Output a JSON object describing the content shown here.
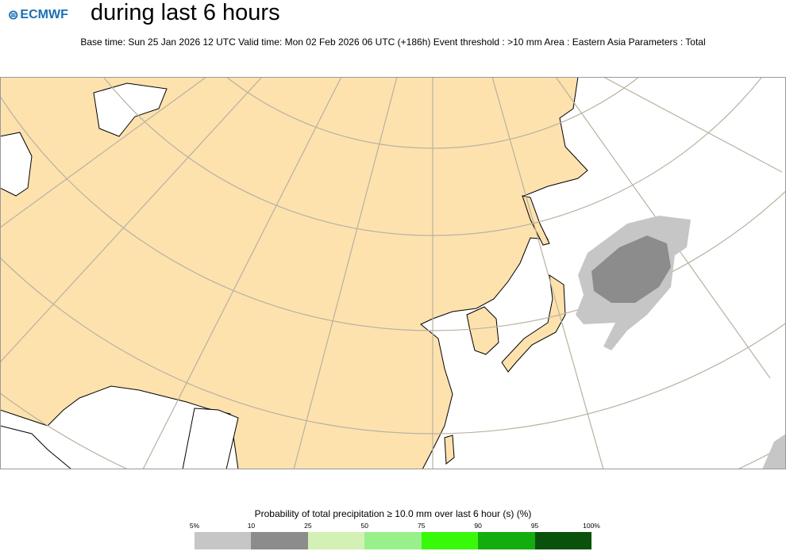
{
  "header": {
    "logo": "ECMWF",
    "title": "during last 6 hours",
    "subtitle": "Base time: Sun 25 Jan 2026 12 UTC Valid time: Mon 02 Feb 2026 06 UTC (+186h) Event threshold : >10 mm Area : Eastern Asia Parameters : Total"
  },
  "map": {
    "land_color": "#fde2ae",
    "ocean_color": "#ffffff",
    "graticule_color": "#b8b1a0",
    "coast_color": "#000000"
  },
  "legend": {
    "title": "Probability of total precipitation ≥ 10.0 mm over last 6 hour (s) (%)",
    "ticks": [
      "5%",
      "10",
      "25",
      "50",
      "75",
      "90",
      "95",
      "100%"
    ],
    "colors": [
      "#c6c6c6",
      "#8c8c8c",
      "#d3f0b5",
      "#98f08a",
      "#38f90a",
      "#14ad0e",
      "#0a520c"
    ]
  }
}
